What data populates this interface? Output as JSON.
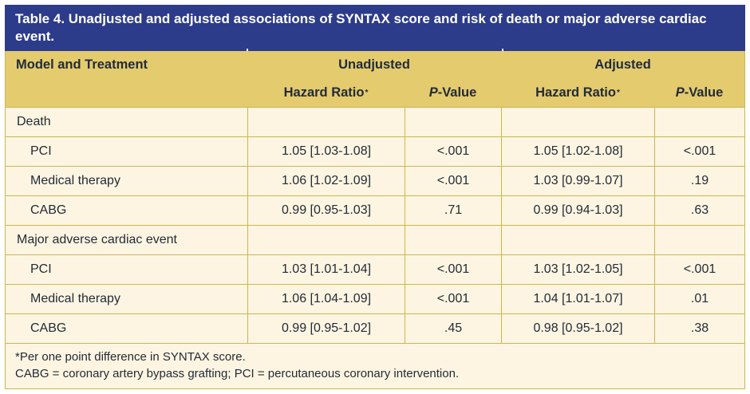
{
  "table": {
    "title": "Table 4. Unadjusted and adjusted associations of SYNTAX score and risk of death or major adverse cardiac event.",
    "header": {
      "model_col": "Model and Treatment",
      "group_unadjusted": "Unadjusted",
      "group_adjusted": "Adjusted",
      "hazard_ratio": "Hazard Ratio",
      "hazard_ratio_sup": "*",
      "p_italic": "P",
      "p_suffix": "-Value"
    },
    "rows": [
      {
        "type": "section",
        "label": "Death",
        "values": [
          "",
          "",
          "",
          ""
        ]
      },
      {
        "type": "treatment",
        "label": "PCI",
        "values": [
          "1.05 [1.03-1.08]",
          "<.001",
          "1.05 [1.02-1.08]",
          "<.001"
        ]
      },
      {
        "type": "treatment",
        "label": "Medical therapy",
        "values": [
          "1.06 [1.02-1.09]",
          "<.001",
          "1.03 [0.99-1.07]",
          ".19"
        ]
      },
      {
        "type": "treatment",
        "label": "CABG",
        "values": [
          "0.99 [0.95-1.03]",
          ".71",
          "0.99 [0.94-1.03]",
          ".63"
        ]
      },
      {
        "type": "section",
        "label": "Major adverse cardiac event",
        "values": [
          "",
          "",
          "",
          ""
        ]
      },
      {
        "type": "treatment",
        "label": "PCI",
        "values": [
          "1.03 [1.01-1.04]",
          "<.001",
          "1.03 [1.02-1.05]",
          "<.001"
        ]
      },
      {
        "type": "treatment",
        "label": "Medical therapy",
        "values": [
          "1.06 [1.04-1.09]",
          "<.001",
          "1.04 [1.01-1.07]",
          ".01"
        ]
      },
      {
        "type": "treatment",
        "label": "CABG",
        "values": [
          "0.99 [0.95-1.02]",
          ".45",
          "0.98 [0.95-1.02]",
          ".38"
        ]
      }
    ],
    "footnotes": [
      "*Per one point difference in SYNTAX score.",
      "CABG = coronary artery bypass grafting; PCI = percutaneous coronary intervention."
    ]
  },
  "colors": {
    "title_bg": "#2c3c8a",
    "title_text": "#ffffff",
    "header_bg": "#e3cb6e",
    "row_bg": "#fdf5e1",
    "grid_border": "#ccb551",
    "text": "#232b38"
  }
}
